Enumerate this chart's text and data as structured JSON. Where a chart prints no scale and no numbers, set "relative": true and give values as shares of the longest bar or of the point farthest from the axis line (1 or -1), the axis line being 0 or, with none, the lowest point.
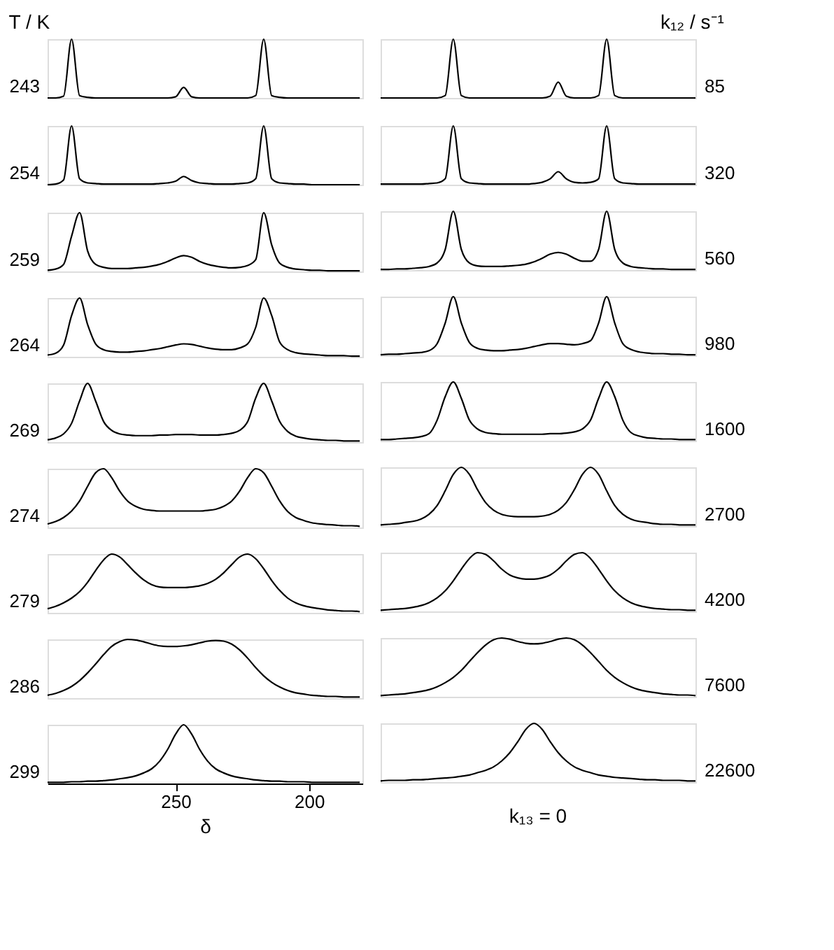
{
  "chart_data": [
    {
      "type": "line",
      "relative": true,
      "title": "T / K",
      "x": [
        298,
        295,
        292,
        289,
        286,
        283,
        280,
        277,
        274,
        271,
        268,
        265,
        262,
        259,
        256,
        253,
        250,
        247,
        244,
        241,
        238,
        235,
        232,
        229,
        226,
        223,
        220,
        217,
        214,
        211,
        208,
        205,
        202,
        199,
        196,
        193,
        190,
        187,
        184,
        181
      ],
      "xlim": [
        298,
        180
      ],
      "tick_labels": false,
      "series": [
        {
          "name": "243",
          "color": "#000000",
          "values": [
            0,
            0,
            0.03,
            1,
            0.04,
            0.01,
            0,
            0,
            0,
            0,
            0,
            0,
            0,
            0,
            0,
            0,
            0.02,
            0.18,
            0.02,
            0,
            0,
            0,
            0,
            0,
            0,
            0,
            0.04,
            1,
            0.04,
            0.01,
            0,
            0,
            0,
            0,
            0,
            0,
            0,
            0,
            0,
            0
          ]
        }
      ]
    },
    {
      "type": "line",
      "relative": true,
      "x": [
        298,
        295,
        292,
        289,
        286,
        283,
        280,
        277,
        274,
        271,
        268,
        265,
        262,
        259,
        256,
        253,
        250,
        247,
        244,
        241,
        238,
        235,
        232,
        229,
        226,
        223,
        220,
        217,
        214,
        211,
        208,
        205,
        202,
        199,
        196,
        193,
        190,
        187,
        184,
        181
      ],
      "xlim": [
        298,
        180
      ],
      "tick_labels": false,
      "series": [
        {
          "name": "254",
          "color": "#000000",
          "values": [
            0,
            0.01,
            0.08,
            1,
            0.1,
            0.03,
            0.02,
            0.01,
            0.01,
            0.01,
            0.01,
            0.01,
            0.01,
            0.01,
            0.02,
            0.03,
            0.06,
            0.14,
            0.07,
            0.03,
            0.02,
            0.01,
            0.01,
            0.01,
            0.02,
            0.03,
            0.1,
            1,
            0.1,
            0.03,
            0.02,
            0.01,
            0.01,
            0,
            0,
            0,
            0,
            0,
            0,
            0
          ]
        }
      ]
    },
    {
      "type": "line",
      "relative": true,
      "x": [
        298,
        295,
        292,
        289,
        286,
        283,
        280,
        277,
        274,
        271,
        268,
        265,
        262,
        259,
        256,
        253,
        250,
        247,
        244,
        241,
        238,
        235,
        232,
        229,
        226,
        223,
        220,
        217,
        214,
        211,
        208,
        205,
        202,
        199,
        196,
        193,
        190,
        187,
        184,
        181
      ],
      "xlim": [
        298,
        180
      ],
      "tick_labels": false,
      "series": [
        {
          "name": "259",
          "color": "#000000",
          "values": [
            0.02,
            0.04,
            0.12,
            0.6,
            1,
            0.35,
            0.12,
            0.07,
            0.05,
            0.05,
            0.05,
            0.06,
            0.07,
            0.09,
            0.12,
            0.17,
            0.23,
            0.27,
            0.24,
            0.17,
            0.12,
            0.09,
            0.07,
            0.06,
            0.07,
            0.1,
            0.2,
            1,
            0.45,
            0.14,
            0.07,
            0.04,
            0.03,
            0.02,
            0.02,
            0.01,
            0.01,
            0.01,
            0.01,
            0.01
          ]
        }
      ]
    },
    {
      "type": "line",
      "relative": true,
      "x": [
        298,
        295,
        292,
        289,
        286,
        283,
        280,
        277,
        274,
        271,
        268,
        265,
        262,
        259,
        256,
        253,
        250,
        247,
        244,
        241,
        238,
        235,
        232,
        229,
        226,
        223,
        220,
        217,
        214,
        211,
        208,
        205,
        202,
        199,
        196,
        193,
        190,
        187,
        184,
        181
      ],
      "xlim": [
        298,
        180
      ],
      "tick_labels": false,
      "series": [
        {
          "name": "264",
          "color": "#000000",
          "values": [
            0.03,
            0.06,
            0.2,
            0.7,
            1,
            0.55,
            0.22,
            0.12,
            0.09,
            0.08,
            0.08,
            0.09,
            0.1,
            0.12,
            0.14,
            0.17,
            0.2,
            0.22,
            0.21,
            0.18,
            0.15,
            0.13,
            0.12,
            0.12,
            0.15,
            0.22,
            0.5,
            1,
            0.7,
            0.25,
            0.12,
            0.07,
            0.05,
            0.04,
            0.03,
            0.02,
            0.02,
            0.02,
            0.01,
            0.01
          ]
        }
      ]
    },
    {
      "type": "line",
      "relative": true,
      "x": [
        298,
        295,
        292,
        289,
        286,
        283,
        280,
        277,
        274,
        271,
        268,
        265,
        262,
        259,
        256,
        253,
        250,
        247,
        244,
        241,
        238,
        235,
        232,
        229,
        226,
        223,
        220,
        217,
        214,
        211,
        208,
        205,
        202,
        199,
        196,
        193,
        190,
        187,
        184,
        181
      ],
      "xlim": [
        298,
        180
      ],
      "tick_labels": false,
      "series": [
        {
          "name": "269",
          "color": "#000000",
          "values": [
            0.04,
            0.07,
            0.14,
            0.32,
            0.7,
            1,
            0.7,
            0.35,
            0.2,
            0.14,
            0.12,
            0.11,
            0.11,
            0.11,
            0.12,
            0.12,
            0.13,
            0.13,
            0.13,
            0.12,
            0.12,
            0.12,
            0.13,
            0.15,
            0.2,
            0.35,
            0.75,
            1,
            0.7,
            0.35,
            0.18,
            0.1,
            0.07,
            0.05,
            0.04,
            0.03,
            0.03,
            0.02,
            0.02,
            0.02
          ]
        }
      ]
    },
    {
      "type": "line",
      "relative": true,
      "x": [
        298,
        295,
        292,
        289,
        286,
        283,
        280,
        277,
        274,
        271,
        268,
        265,
        262,
        259,
        256,
        253,
        250,
        247,
        244,
        241,
        238,
        235,
        232,
        229,
        226,
        223,
        220,
        217,
        214,
        211,
        208,
        205,
        202,
        199,
        196,
        193,
        190,
        187,
        184,
        181
      ],
      "xlim": [
        298,
        180
      ],
      "tick_labels": false,
      "series": [
        {
          "name": "274",
          "color": "#000000",
          "values": [
            0.06,
            0.1,
            0.17,
            0.28,
            0.45,
            0.7,
            0.93,
            1,
            0.85,
            0.62,
            0.45,
            0.36,
            0.31,
            0.29,
            0.28,
            0.28,
            0.28,
            0.28,
            0.28,
            0.28,
            0.29,
            0.31,
            0.36,
            0.45,
            0.62,
            0.85,
            1,
            0.93,
            0.7,
            0.45,
            0.27,
            0.17,
            0.12,
            0.08,
            0.06,
            0.05,
            0.04,
            0.03,
            0.03,
            0.02
          ]
        }
      ]
    },
    {
      "type": "line",
      "relative": true,
      "x": [
        298,
        295,
        292,
        289,
        286,
        283,
        280,
        277,
        274,
        271,
        268,
        265,
        262,
        259,
        256,
        253,
        250,
        247,
        244,
        241,
        238,
        235,
        232,
        229,
        226,
        223,
        220,
        217,
        214,
        211,
        208,
        205,
        202,
        199,
        196,
        193,
        190,
        187,
        184,
        181
      ],
      "xlim": [
        298,
        180
      ],
      "tick_labels": false,
      "series": [
        {
          "name": "279",
          "color": "#000000",
          "values": [
            0.07,
            0.11,
            0.17,
            0.25,
            0.36,
            0.52,
            0.72,
            0.9,
            1,
            0.95,
            0.82,
            0.68,
            0.56,
            0.48,
            0.44,
            0.43,
            0.43,
            0.43,
            0.44,
            0.46,
            0.5,
            0.57,
            0.68,
            0.82,
            0.95,
            1,
            0.92,
            0.75,
            0.55,
            0.38,
            0.25,
            0.17,
            0.12,
            0.09,
            0.07,
            0.05,
            0.04,
            0.03,
            0.03,
            0.02
          ]
        }
      ]
    },
    {
      "type": "line",
      "relative": true,
      "x": [
        298,
        295,
        292,
        289,
        286,
        283,
        280,
        277,
        274,
        271,
        268,
        265,
        262,
        259,
        256,
        253,
        250,
        247,
        244,
        241,
        238,
        235,
        232,
        229,
        226,
        223,
        220,
        217,
        214,
        211,
        208,
        205,
        202,
        199,
        196,
        193,
        190,
        187,
        184,
        181
      ],
      "xlim": [
        298,
        180
      ],
      "tick_labels": false,
      "series": [
        {
          "name": "286",
          "color": "#000000",
          "values": [
            0.05,
            0.08,
            0.13,
            0.2,
            0.3,
            0.43,
            0.58,
            0.74,
            0.88,
            0.96,
            1,
            0.99,
            0.96,
            0.92,
            0.89,
            0.88,
            0.88,
            0.89,
            0.91,
            0.94,
            0.97,
            0.98,
            0.97,
            0.92,
            0.82,
            0.68,
            0.52,
            0.38,
            0.27,
            0.19,
            0.13,
            0.09,
            0.07,
            0.05,
            0.04,
            0.03,
            0.03,
            0.02,
            0.02,
            0.02
          ]
        }
      ]
    },
    {
      "type": "line",
      "relative": true,
      "xlabel": "δ",
      "x": [
        298,
        295,
        292,
        289,
        286,
        283,
        280,
        277,
        274,
        271,
        268,
        265,
        262,
        259,
        256,
        253,
        250,
        247,
        244,
        241,
        238,
        235,
        232,
        229,
        226,
        223,
        220,
        217,
        214,
        211,
        208,
        205,
        202,
        199,
        196,
        193,
        190,
        187,
        184,
        181
      ],
      "xlim": [
        298,
        180
      ],
      "xticks": [
        250,
        200
      ],
      "tick_labels": "x",
      "series": [
        {
          "name": "299",
          "color": "#000000",
          "values": [
            0.02,
            0.02,
            0.02,
            0.03,
            0.03,
            0.04,
            0.04,
            0.05,
            0.06,
            0.08,
            0.1,
            0.13,
            0.18,
            0.25,
            0.38,
            0.58,
            0.84,
            1,
            0.84,
            0.58,
            0.38,
            0.25,
            0.18,
            0.13,
            0.1,
            0.08,
            0.06,
            0.05,
            0.04,
            0.04,
            0.03,
            0.03,
            0.03,
            0.02,
            0.02,
            0.02,
            0.02,
            0.02,
            0.02,
            0.02
          ]
        }
      ]
    },
    {
      "type": "line",
      "relative": true,
      "title": "k₁₂ / s⁻¹",
      "categories": [
        null,
        null,
        null,
        null,
        null,
        null,
        null,
        null,
        null,
        null,
        null,
        null,
        null,
        null,
        null,
        null,
        null,
        null,
        null,
        null,
        null,
        null,
        null,
        null,
        null,
        null,
        null,
        null,
        null,
        null,
        null,
        null,
        null,
        null,
        null,
        null,
        null,
        null,
        null,
        null
      ],
      "tick_labels": false,
      "series": [
        {
          "name": "85",
          "color": "#000000",
          "values": [
            0,
            0,
            0,
            0,
            0,
            0,
            0,
            0,
            0.04,
            1,
            0.04,
            0,
            0,
            0,
            0,
            0,
            0,
            0,
            0,
            0,
            0,
            0.03,
            0.27,
            0.03,
            0,
            0,
            0,
            0.04,
            1,
            0.04,
            0,
            0,
            0,
            0,
            0,
            0,
            0,
            0,
            0,
            0
          ]
        }
      ]
    },
    {
      "type": "line",
      "relative": true,
      "categories": [
        null,
        null,
        null,
        null,
        null,
        null,
        null,
        null,
        null,
        null,
        null,
        null,
        null,
        null,
        null,
        null,
        null,
        null,
        null,
        null,
        null,
        null,
        null,
        null,
        null,
        null,
        null,
        null,
        null,
        null,
        null,
        null,
        null,
        null,
        null,
        null,
        null,
        null,
        null,
        null
      ],
      "tick_labels": false,
      "series": [
        {
          "name": "320",
          "color": "#000000",
          "values": [
            0.01,
            0.01,
            0.01,
            0.01,
            0.01,
            0.01,
            0.02,
            0.03,
            0.1,
            1,
            0.1,
            0.03,
            0.02,
            0.01,
            0.01,
            0.01,
            0.01,
            0.01,
            0.01,
            0.02,
            0.04,
            0.1,
            0.22,
            0.1,
            0.04,
            0.03,
            0.04,
            0.1,
            1,
            0.1,
            0.03,
            0.02,
            0.01,
            0.01,
            0.01,
            0.01,
            0.01,
            0.01,
            0.01,
            0.01
          ]
        }
      ]
    },
    {
      "type": "line",
      "relative": true,
      "categories": [
        null,
        null,
        null,
        null,
        null,
        null,
        null,
        null,
        null,
        null,
        null,
        null,
        null,
        null,
        null,
        null,
        null,
        null,
        null,
        null,
        null,
        null,
        null,
        null,
        null,
        null,
        null,
        null,
        null,
        null,
        null,
        null,
        null,
        null,
        null,
        null,
        null,
        null,
        null,
        null
      ],
      "tick_labels": false,
      "series": [
        {
          "name": "560",
          "color": "#000000",
          "values": [
            0.01,
            0.01,
            0.02,
            0.02,
            0.03,
            0.04,
            0.06,
            0.12,
            0.35,
            1,
            0.35,
            0.12,
            0.07,
            0.06,
            0.06,
            0.06,
            0.07,
            0.08,
            0.1,
            0.14,
            0.2,
            0.27,
            0.3,
            0.27,
            0.2,
            0.15,
            0.15,
            0.35,
            1,
            0.35,
            0.12,
            0.06,
            0.04,
            0.03,
            0.02,
            0.02,
            0.01,
            0.01,
            0.01,
            0.01
          ]
        }
      ]
    },
    {
      "type": "line",
      "relative": true,
      "categories": [
        null,
        null,
        null,
        null,
        null,
        null,
        null,
        null,
        null,
        null,
        null,
        null,
        null,
        null,
        null,
        null,
        null,
        null,
        null,
        null,
        null,
        null,
        null,
        null,
        null,
        null,
        null,
        null,
        null,
        null,
        null,
        null,
        null,
        null,
        null,
        null,
        null,
        null,
        null,
        null
      ],
      "tick_labels": false,
      "series": [
        {
          "name": "980",
          "color": "#000000",
          "values": [
            0.01,
            0.02,
            0.02,
            0.03,
            0.04,
            0.05,
            0.08,
            0.2,
            0.55,
            1,
            0.55,
            0.22,
            0.12,
            0.09,
            0.08,
            0.08,
            0.09,
            0.1,
            0.12,
            0.15,
            0.18,
            0.2,
            0.2,
            0.19,
            0.18,
            0.2,
            0.25,
            0.55,
            1,
            0.55,
            0.2,
            0.1,
            0.06,
            0.04,
            0.03,
            0.03,
            0.02,
            0.02,
            0.01,
            0.01
          ]
        }
      ]
    },
    {
      "type": "line",
      "relative": true,
      "categories": [
        null,
        null,
        null,
        null,
        null,
        null,
        null,
        null,
        null,
        null,
        null,
        null,
        null,
        null,
        null,
        null,
        null,
        null,
        null,
        null,
        null,
        null,
        null,
        null,
        null,
        null,
        null,
        null,
        null,
        null,
        null,
        null,
        null,
        null,
        null,
        null,
        null,
        null,
        null,
        null
      ],
      "tick_labels": false,
      "series": [
        {
          "name": "1600",
          "color": "#000000",
          "values": [
            0.02,
            0.02,
            0.03,
            0.04,
            0.05,
            0.07,
            0.12,
            0.35,
            0.75,
            1,
            0.72,
            0.35,
            0.2,
            0.14,
            0.12,
            0.11,
            0.11,
            0.11,
            0.11,
            0.11,
            0.11,
            0.12,
            0.12,
            0.13,
            0.15,
            0.2,
            0.35,
            0.72,
            1,
            0.75,
            0.35,
            0.14,
            0.08,
            0.05,
            0.04,
            0.03,
            0.03,
            0.02,
            0.02,
            0.02
          ]
        }
      ]
    },
    {
      "type": "line",
      "relative": true,
      "categories": [
        null,
        null,
        null,
        null,
        null,
        null,
        null,
        null,
        null,
        null,
        null,
        null,
        null,
        null,
        null,
        null,
        null,
        null,
        null,
        null,
        null,
        null,
        null,
        null,
        null,
        null,
        null,
        null,
        null,
        null,
        null,
        null,
        null,
        null,
        null,
        null,
        null,
        null,
        null,
        null
      ],
      "tick_labels": false,
      "series": [
        {
          "name": "2700",
          "color": "#000000",
          "values": [
            0.02,
            0.03,
            0.04,
            0.06,
            0.08,
            0.12,
            0.2,
            0.35,
            0.6,
            0.88,
            1,
            0.88,
            0.62,
            0.4,
            0.27,
            0.2,
            0.17,
            0.16,
            0.16,
            0.16,
            0.17,
            0.2,
            0.27,
            0.4,
            0.62,
            0.88,
            1,
            0.88,
            0.6,
            0.35,
            0.2,
            0.12,
            0.08,
            0.06,
            0.04,
            0.03,
            0.03,
            0.02,
            0.02,
            0.02
          ]
        }
      ]
    },
    {
      "type": "line",
      "relative": true,
      "categories": [
        null,
        null,
        null,
        null,
        null,
        null,
        null,
        null,
        null,
        null,
        null,
        null,
        null,
        null,
        null,
        null,
        null,
        null,
        null,
        null,
        null,
        null,
        null,
        null,
        null,
        null,
        null,
        null,
        null,
        null,
        null,
        null,
        null,
        null,
        null,
        null,
        null,
        null,
        null,
        null
      ],
      "tick_labels": false,
      "series": [
        {
          "name": "4200",
          "color": "#000000",
          "values": [
            0.02,
            0.03,
            0.04,
            0.05,
            0.07,
            0.1,
            0.15,
            0.23,
            0.35,
            0.52,
            0.72,
            0.9,
            1,
            0.97,
            0.86,
            0.72,
            0.62,
            0.57,
            0.55,
            0.55,
            0.57,
            0.62,
            0.72,
            0.86,
            0.97,
            1,
            0.9,
            0.72,
            0.52,
            0.35,
            0.23,
            0.15,
            0.1,
            0.07,
            0.05,
            0.04,
            0.03,
            0.03,
            0.02,
            0.02
          ]
        }
      ]
    },
    {
      "type": "line",
      "relative": true,
      "categories": [
        null,
        null,
        null,
        null,
        null,
        null,
        null,
        null,
        null,
        null,
        null,
        null,
        null,
        null,
        null,
        null,
        null,
        null,
        null,
        null,
        null,
        null,
        null,
        null,
        null,
        null,
        null,
        null,
        null,
        null,
        null,
        null,
        null,
        null,
        null,
        null,
        null,
        null,
        null,
        null
      ],
      "tick_labels": false,
      "series": [
        {
          "name": "7600",
          "color": "#000000",
          "values": [
            0.02,
            0.03,
            0.04,
            0.05,
            0.07,
            0.09,
            0.12,
            0.17,
            0.24,
            0.33,
            0.45,
            0.6,
            0.75,
            0.88,
            0.97,
            1,
            0.98,
            0.94,
            0.91,
            0.9,
            0.91,
            0.94,
            0.98,
            1,
            0.97,
            0.88,
            0.75,
            0.6,
            0.45,
            0.33,
            0.24,
            0.17,
            0.12,
            0.09,
            0.07,
            0.05,
            0.04,
            0.03,
            0.03,
            0.02
          ]
        }
      ]
    },
    {
      "type": "line",
      "relative": true,
      "annotations": [
        "k₁₃ = 0"
      ],
      "categories": [
        null,
        null,
        null,
        null,
        null,
        null,
        null,
        null,
        null,
        null,
        null,
        null,
        null,
        null,
        null,
        null,
        null,
        null,
        null,
        null,
        null,
        null,
        null,
        null,
        null,
        null,
        null,
        null,
        null,
        null,
        null,
        null,
        null,
        null,
        null,
        null,
        null,
        null,
        null,
        null
      ],
      "tick_labels": false,
      "series": [
        {
          "name": "22600",
          "color": "#000000",
          "values": [
            0.02,
            0.03,
            0.03,
            0.03,
            0.04,
            0.04,
            0.05,
            0.06,
            0.07,
            0.08,
            0.1,
            0.12,
            0.16,
            0.2,
            0.26,
            0.36,
            0.5,
            0.69,
            0.9,
            1,
            0.9,
            0.69,
            0.5,
            0.36,
            0.26,
            0.2,
            0.16,
            0.12,
            0.1,
            0.08,
            0.07,
            0.06,
            0.05,
            0.04,
            0.04,
            0.03,
            0.03,
            0.03,
            0.02,
            0.02
          ]
        }
      ]
    }
  ]
}
